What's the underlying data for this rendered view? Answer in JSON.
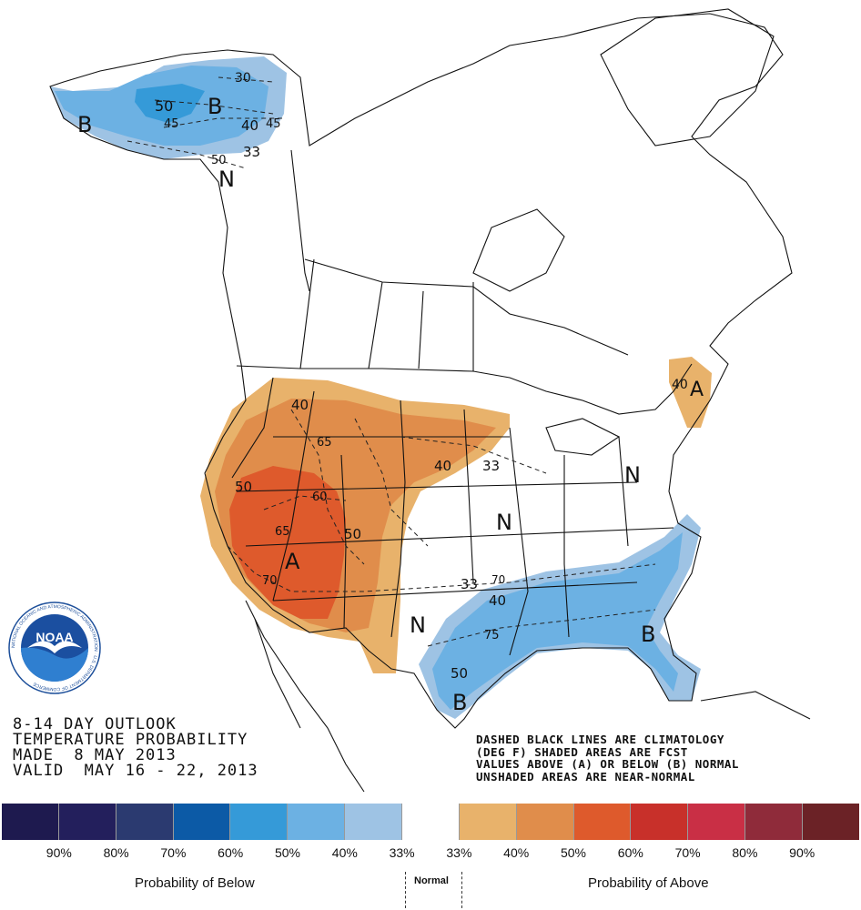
{
  "outlook": {
    "line1": "8-14 DAY OUTLOOK",
    "line2": "TEMPERATURE PROBABILITY",
    "line3": "MADE  8 MAY 2013",
    "line4": "VALID  MAY 16 - 22, 2013"
  },
  "notes": {
    "line1": "DASHED BLACK LINES ARE CLIMATOLOGY",
    "line2": "(DEG F) SHADED AREAS ARE FCST",
    "line3": "VALUES ABOVE (A) OR BELOW (B) NORMAL",
    "line4": "UNSHADED AREAS ARE NEAR-NORMAL"
  },
  "logo": {
    "center_text": "NOAA",
    "ring_text": "NATIONAL OCEANIC AND ATMOSPHERIC ADMINISTRATION · U.S. DEPARTMENT OF COMMERCE"
  },
  "map_labels": {
    "letters": [
      "B",
      "B",
      "N",
      "A",
      "A",
      "N",
      "N",
      "N",
      "B",
      "B"
    ],
    "contours": [
      "30",
      "50",
      "45",
      "40",
      "45",
      "33",
      "50",
      "40",
      "65",
      "50",
      "60",
      "65",
      "50",
      "70",
      "40",
      "33",
      "33",
      "40",
      "70",
      "75",
      "50",
      "40"
    ]
  },
  "legend": {
    "colors": [
      "#1e1a4f",
      "#231f5c",
      "#2b3a70",
      "#0c5aa6",
      "#359ad8",
      "#6cb1e3",
      "#9ec3e4",
      "#ffffff",
      "#e8b26b",
      "#e08d4b",
      "#de5a2c",
      "#c8302a",
      "#c92f45",
      "#8f2b3a",
      "#6b2226"
    ],
    "percents": [
      "90%",
      "80%",
      "70%",
      "60%",
      "50%",
      "40%",
      "33%",
      "33%",
      "40%",
      "50%",
      "60%",
      "70%",
      "80%",
      "90%"
    ],
    "below_label": "Probability of Below",
    "normal_label": "Normal",
    "above_label": "Probability of Above"
  }
}
